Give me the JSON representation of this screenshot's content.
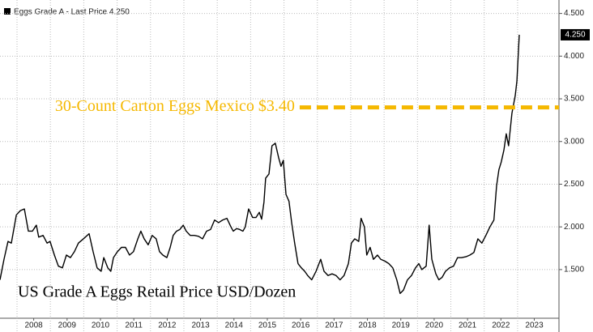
{
  "chart_data": {
    "type": "line",
    "legend": "Eggs Grade A - Last Price 4.250",
    "subtitle": "US Grade A Eggs Retail Price USD/Dozen",
    "annotation_line": {
      "value": 3.4,
      "x_start": 2016.47,
      "color": "#f5b800",
      "label": "30-Count Carton Eggs Mexico $3.40"
    },
    "last_price": {
      "value": 4.25,
      "label": "4.250"
    },
    "xlim": [
      2007.49,
      2024.24
    ],
    "xticks": [
      {
        "value": 2008.5,
        "label": "2008"
      },
      {
        "value": 2009.5,
        "label": "2009"
      },
      {
        "value": 2010.5,
        "label": "2010"
      },
      {
        "value": 2011.5,
        "label": "2011"
      },
      {
        "value": 2012.5,
        "label": "2012"
      },
      {
        "value": 2013.5,
        "label": "2013"
      },
      {
        "value": 2014.5,
        "label": "2014"
      },
      {
        "value": 2015.5,
        "label": "2015"
      },
      {
        "value": 2016.5,
        "label": "2016"
      },
      {
        "value": 2017.5,
        "label": "2017"
      },
      {
        "value": 2018.5,
        "label": "2018"
      },
      {
        "value": 2019.5,
        "label": "2019"
      },
      {
        "value": 2020.5,
        "label": "2020"
      },
      {
        "value": 2021.5,
        "label": "2021"
      },
      {
        "value": 2022.5,
        "label": "2022"
      },
      {
        "value": 2023.5,
        "label": "2023"
      }
    ],
    "ylim": [
      0.93,
      4.61
    ],
    "yticks": [
      {
        "value": 1.5,
        "label": "1.500"
      },
      {
        "value": 2,
        "label": "2.000"
      },
      {
        "value": 2.5,
        "label": "2.500"
      },
      {
        "value": 3,
        "label": "3.000"
      },
      {
        "value": 3.5,
        "label": "3.500"
      },
      {
        "value": 4,
        "label": "4.000"
      },
      {
        "value": 4.5,
        "label": "4.500"
      }
    ],
    "grid": true,
    "series": [
      {
        "name": "Eggs Grade A",
        "color": "#000000",
        "x": [
          2007.49,
          2007.61,
          2007.73,
          2007.83,
          2007.98,
          2008.1,
          2008.22,
          2008.34,
          2008.46,
          2008.58,
          2008.65,
          2008.78,
          2008.9,
          2008.99,
          2009.12,
          2009.24,
          2009.36,
          2009.48,
          2009.6,
          2009.72,
          2009.84,
          2009.99,
          2010.16,
          2010.28,
          2010.4,
          2010.52,
          2010.6,
          2010.72,
          2010.81,
          2010.89,
          2011.01,
          2011.13,
          2011.25,
          2011.37,
          2011.49,
          2011.62,
          2011.71,
          2011.81,
          2011.93,
          2012.05,
          2012.17,
          2012.27,
          2012.37,
          2012.49,
          2012.59,
          2012.68,
          2012.78,
          2012.88,
          2012.98,
          2013.07,
          2013.19,
          2013.31,
          2013.44,
          2013.56,
          2013.68,
          2013.8,
          2013.92,
          2014.04,
          2014.16,
          2014.29,
          2014.41,
          2014.48,
          2014.58,
          2014.67,
          2014.77,
          2014.84,
          2014.94,
          2015.06,
          2015.16,
          2015.26,
          2015.33,
          2015.4,
          2015.45,
          2015.55,
          2015.64,
          2015.74,
          2015.84,
          2015.91,
          2015.98,
          2016.06,
          2016.15,
          2016.23,
          2016.32,
          2016.42,
          2016.52,
          2016.62,
          2016.71,
          2016.83,
          2016.96,
          2017.1,
          2017.2,
          2017.32,
          2017.44,
          2017.56,
          2017.68,
          2017.8,
          2017.93,
          2018.02,
          2018.12,
          2018.24,
          2018.31,
          2018.41,
          2018.48,
          2018.58,
          2018.68,
          2018.8,
          2018.9,
          2019.02,
          2019.14,
          2019.26,
          2019.38,
          2019.48,
          2019.58,
          2019.7,
          2019.82,
          2019.94,
          2020.04,
          2020.13,
          2020.26,
          2020.35,
          2020.43,
          2020.55,
          2020.64,
          2020.74,
          2020.84,
          2020.96,
          2021.08,
          2021.2,
          2021.32,
          2021.45,
          2021.57,
          2021.69,
          2021.81,
          2021.93,
          2022.05,
          2022.17,
          2022.29,
          2022.37,
          2022.44,
          2022.51,
          2022.59,
          2022.66,
          2022.73,
          2022.83,
          2022.93,
          2022.98,
          2023.05
        ],
        "values": [
          1.38,
          1.62,
          1.83,
          1.81,
          2.14,
          2.19,
          2.21,
          1.95,
          1.95,
          2.02,
          1.88,
          1.9,
          1.81,
          1.83,
          1.67,
          1.54,
          1.52,
          1.67,
          1.64,
          1.71,
          1.81,
          1.86,
          1.92,
          1.71,
          1.52,
          1.48,
          1.64,
          1.52,
          1.48,
          1.64,
          1.71,
          1.76,
          1.76,
          1.67,
          1.71,
          1.86,
          1.95,
          1.86,
          1.79,
          1.9,
          1.86,
          1.71,
          1.67,
          1.64,
          1.76,
          1.9,
          1.95,
          1.97,
          2.02,
          1.95,
          1.9,
          1.9,
          1.89,
          1.86,
          1.95,
          1.97,
          2.08,
          2.05,
          2.08,
          2.1,
          2.0,
          1.95,
          1.98,
          1.97,
          1.95,
          2.0,
          2.21,
          2.11,
          2.11,
          2.17,
          2.09,
          2.29,
          2.57,
          2.62,
          2.95,
          2.98,
          2.81,
          2.71,
          2.78,
          2.38,
          2.3,
          2.05,
          1.81,
          1.57,
          1.52,
          1.48,
          1.43,
          1.38,
          1.48,
          1.62,
          1.48,
          1.43,
          1.45,
          1.43,
          1.38,
          1.43,
          1.57,
          1.81,
          1.86,
          1.83,
          2.1,
          2.0,
          1.67,
          1.76,
          1.62,
          1.67,
          1.62,
          1.6,
          1.57,
          1.52,
          1.38,
          1.22,
          1.26,
          1.38,
          1.43,
          1.52,
          1.57,
          1.5,
          1.54,
          2.02,
          1.62,
          1.45,
          1.38,
          1.41,
          1.48,
          1.52,
          1.54,
          1.64,
          1.64,
          1.65,
          1.67,
          1.7,
          1.86,
          1.81,
          1.9,
          2.0,
          2.08,
          2.48,
          2.67,
          2.76,
          2.9,
          3.09,
          2.95,
          3.33,
          3.54,
          3.71,
          4.25
        ]
      }
    ]
  }
}
